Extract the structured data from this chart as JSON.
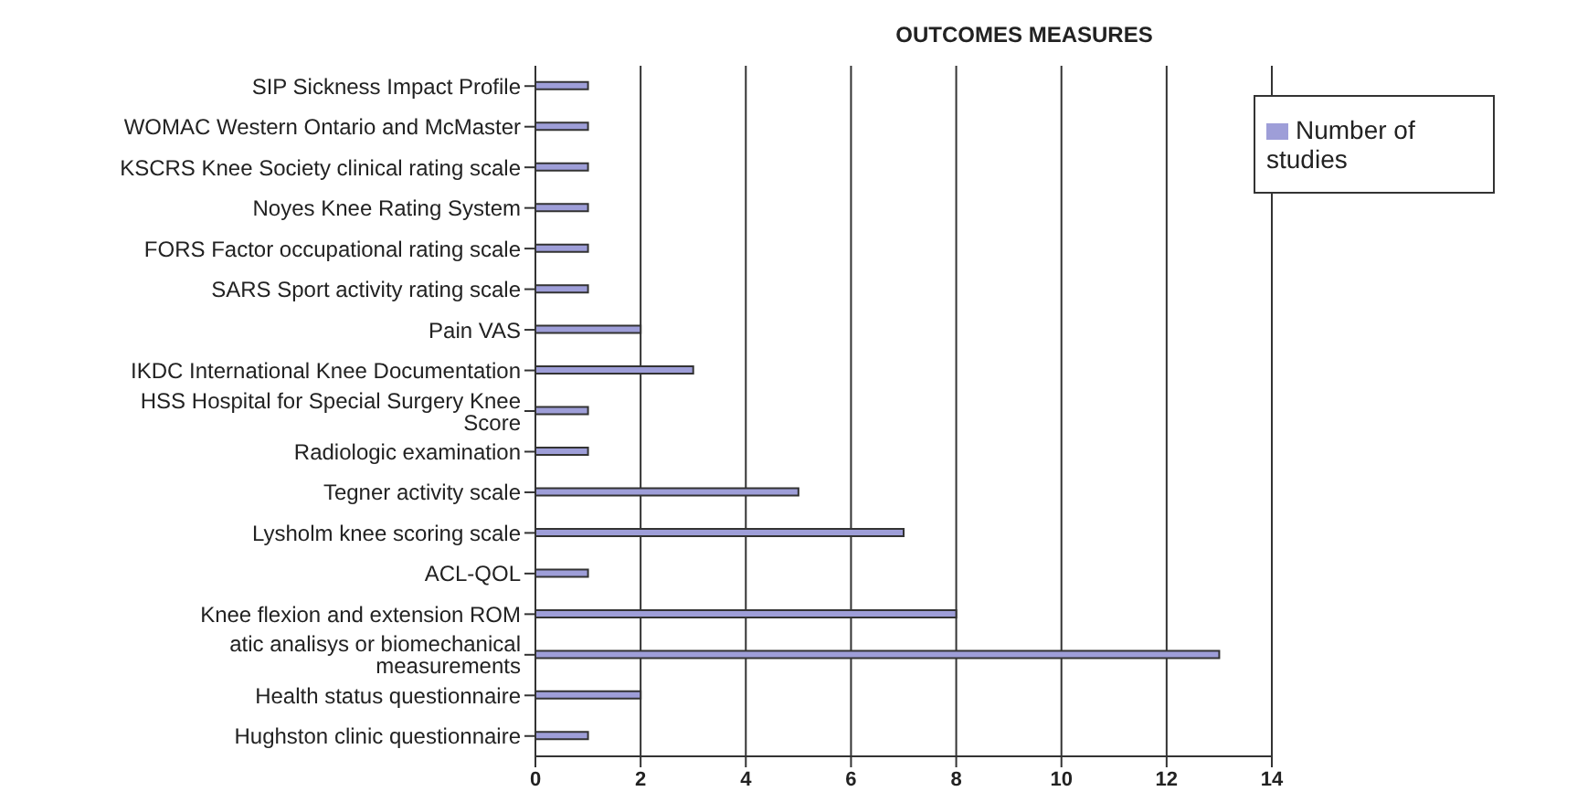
{
  "chart_data": {
    "type": "bar",
    "orientation": "horizontal",
    "title": "OUTCOMES MEASURES",
    "categories": [
      "SIP Sickness  Impact  Profile",
      "WOMAC Western Ontario and McMaster",
      "KSCRS Knee Society clinical rating scale",
      "Noyes Knee Rating System",
      "FORS Factor occupational rating scale",
      "SARS Sport activity rating scale",
      "Pain VAS",
      "IKDC International Knee Documentation",
      "HSS Hospital for Special Surgery Knee Score",
      "Radiologic examination",
      "Tegner activity scale",
      "Lysholm knee scoring scale",
      "ACL-QOL",
      "Knee flexion and extension ROM",
      "atic analisys or biomechanical measurements",
      "Health status questionnaire",
      "Hughston clinic questionnaire"
    ],
    "series": [
      {
        "name": "Number of studies",
        "color": "#9e9ed8",
        "values": [
          1,
          1,
          1,
          1,
          1,
          1,
          2,
          3,
          1,
          1,
          5,
          7,
          1,
          8,
          13,
          2,
          1
        ]
      }
    ],
    "xlim": [
      0,
      14
    ],
    "xticks": [
      0,
      2,
      4,
      6,
      8,
      10,
      12,
      14
    ],
    "grid": "x",
    "legend": "top right"
  }
}
